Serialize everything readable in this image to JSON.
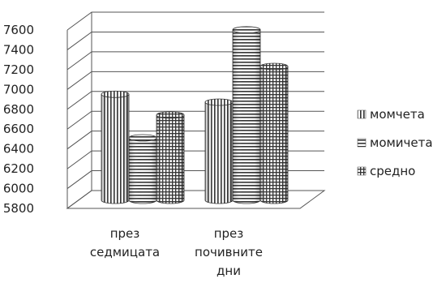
{
  "chart_data": {
    "type": "bar",
    "style": "3d-cylinder",
    "title": "",
    "xlabel": "",
    "ylabel": "",
    "ylim": [
      5800,
      7600
    ],
    "yticks": [
      "7600",
      "7400",
      "7200",
      "7000",
      "6800",
      "6600",
      "6400",
      "6200",
      "6000",
      "5800"
    ],
    "categories": [
      [
        "през",
        "седмицата"
      ],
      [
        "през",
        "почивните",
        "дни"
      ]
    ],
    "series": [
      {
        "name": "момчета",
        "pattern": "vertical-stripes",
        "values": [
          6870,
          6790
        ]
      },
      {
        "name": "момичета",
        "pattern": "horizontal-stripes",
        "values": [
          6430,
          7520
        ]
      },
      {
        "name": "средно",
        "pattern": "grid",
        "values": [
          6660,
          7150
        ]
      }
    ],
    "grid": true,
    "legend": "right"
  }
}
